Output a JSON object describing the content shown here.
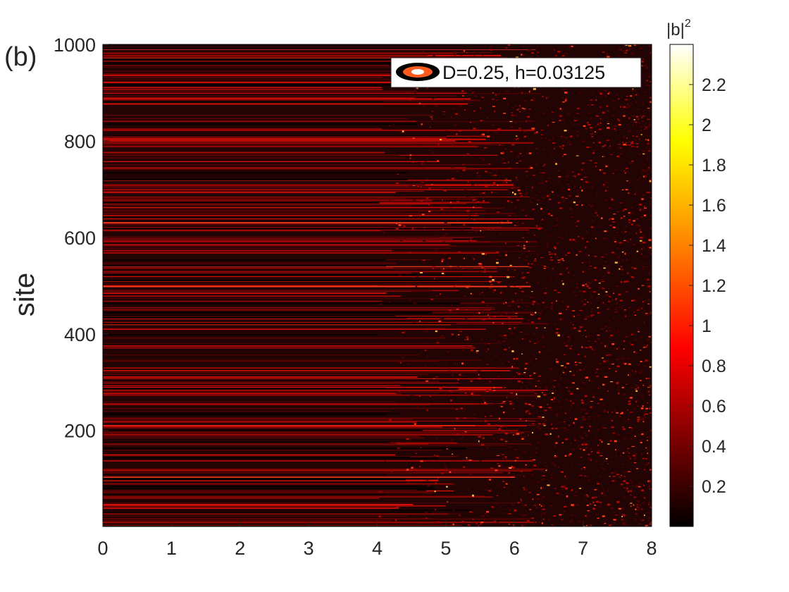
{
  "chart_data": {
    "type": "heatmap",
    "panel_label": "(b)",
    "title": "",
    "xlabel": "",
    "ylabel": "site",
    "xlim": [
      0,
      8
    ],
    "ylim": [
      1,
      1000
    ],
    "x_ticks": [
      "0",
      "1",
      "2",
      "3",
      "4",
      "5",
      "6",
      "7",
      "8"
    ],
    "y_ticks": [
      "200",
      "400",
      "600",
      "800",
      "1000"
    ],
    "legend": {
      "label": "D=0.25, h=0.03125",
      "placement": "top-right",
      "marker_colors": [
        "#000000",
        "#ff5a1e",
        "#ffffff"
      ]
    },
    "colorbar": {
      "label_base": "|b|",
      "label_exp": "2",
      "range": [
        0,
        2.4
      ],
      "ticks": [
        "0.2",
        "0.4",
        "0.6",
        "0.8",
        "1",
        "1.2",
        "1.4",
        "1.6",
        "1.8",
        "2",
        "2.2"
      ],
      "colormap": "hot",
      "colormap_stops": [
        "#000000",
        "#8a0000",
        "#ff0000",
        "#ff8c00",
        "#ffff00",
        "#ffffff"
      ]
    },
    "pattern": {
      "description": "",
      "num_sites": 1000,
      "transition_start_x": 4,
      "transition_end_x": 6.5
    }
  }
}
